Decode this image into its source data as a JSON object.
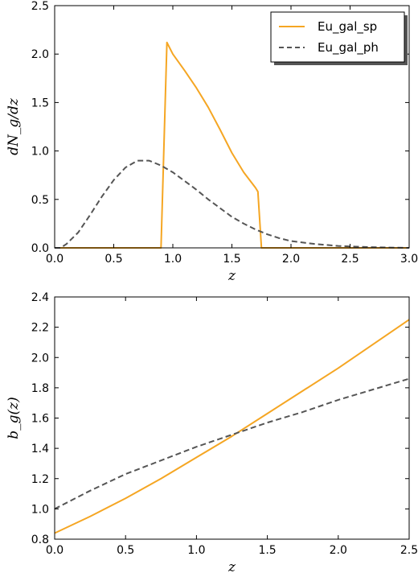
{
  "colors": {
    "sp": "#f5a623",
    "ph": "#555555"
  },
  "chart_data": [
    {
      "type": "line",
      "xlabel": "z",
      "ylabel": "dN_g/dz",
      "xlim": [
        0.0,
        3.0
      ],
      "ylim": [
        0.0,
        2.5
      ],
      "xticks": [
        "0.0",
        "0.5",
        "1.0",
        "1.5",
        "2.0",
        "2.5",
        "3.0"
      ],
      "yticks": [
        "0.0",
        "0.5",
        "1.0",
        "1.5",
        "2.0",
        "2.5"
      ],
      "legend": {
        "placement": "top-right",
        "entries": [
          "Eu_gal_sp",
          "Eu_gal_ph"
        ]
      },
      "series": [
        {
          "name": "Eu_gal_sp",
          "style": "solid",
          "x": [
            0.0,
            0.9,
            0.95,
            1.0,
            1.1,
            1.2,
            1.3,
            1.4,
            1.5,
            1.6,
            1.7,
            1.72,
            1.75,
            1.8,
            3.0
          ],
          "y": [
            0.0,
            0.0,
            2.12,
            2.0,
            1.83,
            1.65,
            1.45,
            1.22,
            0.98,
            0.78,
            0.62,
            0.58,
            0.0,
            0.0,
            0.0
          ]
        },
        {
          "name": "Eu_gal_ph",
          "style": "dashed",
          "x": [
            0.0,
            0.05,
            0.1,
            0.2,
            0.3,
            0.4,
            0.5,
            0.6,
            0.7,
            0.8,
            0.9,
            1.0,
            1.1,
            1.2,
            1.3,
            1.4,
            1.5,
            1.6,
            1.7,
            1.8,
            1.9,
            2.0,
            2.2,
            2.4,
            2.6,
            2.8,
            3.0
          ],
          "y": [
            0.0,
            0.0,
            0.04,
            0.16,
            0.34,
            0.53,
            0.7,
            0.83,
            0.9,
            0.9,
            0.85,
            0.78,
            0.69,
            0.6,
            0.5,
            0.41,
            0.32,
            0.25,
            0.19,
            0.14,
            0.1,
            0.07,
            0.04,
            0.02,
            0.01,
            0.004,
            0.0
          ]
        }
      ]
    },
    {
      "type": "line",
      "xlabel": "z",
      "ylabel": "b_g(z)",
      "xlim": [
        0.0,
        2.5
      ],
      "ylim": [
        0.8,
        2.4
      ],
      "xticks": [
        "0.0",
        "0.5",
        "1.0",
        "1.5",
        "2.0",
        "2.5"
      ],
      "yticks": [
        "0.8",
        "1.0",
        "1.2",
        "1.4",
        "1.6",
        "1.8",
        "2.0",
        "2.2",
        "2.4"
      ],
      "series": [
        {
          "name": "Eu_gal_sp",
          "style": "solid",
          "x": [
            0.0,
            0.25,
            0.5,
            0.75,
            1.0,
            1.25,
            1.5,
            1.75,
            2.0,
            2.25,
            2.5
          ],
          "y": [
            0.84,
            0.95,
            1.07,
            1.2,
            1.34,
            1.48,
            1.63,
            1.78,
            1.93,
            2.09,
            2.25
          ]
        },
        {
          "name": "Eu_gal_ph",
          "style": "dashed",
          "x": [
            0.0,
            0.25,
            0.5,
            0.75,
            1.0,
            1.25,
            1.5,
            1.75,
            2.0,
            2.25,
            2.5
          ],
          "y": [
            1.0,
            1.12,
            1.23,
            1.32,
            1.41,
            1.49,
            1.57,
            1.64,
            1.72,
            1.79,
            1.86
          ]
        }
      ]
    }
  ]
}
